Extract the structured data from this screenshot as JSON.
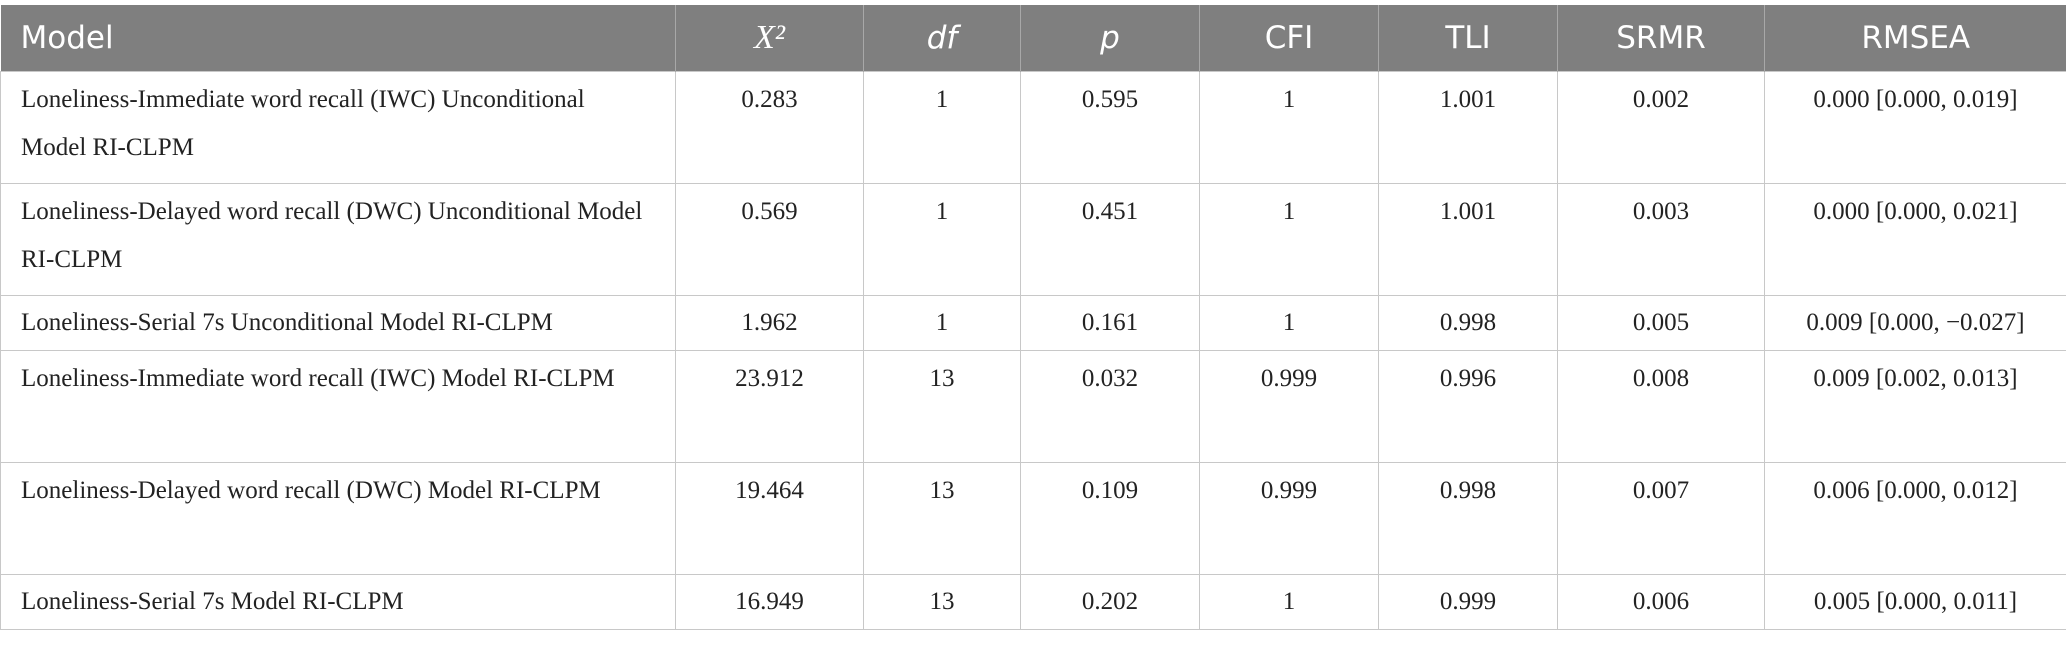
{
  "table": {
    "header": [
      "Model",
      "X²",
      "df",
      "p",
      "CFI",
      "TLI",
      "SRMR",
      "RMSEA"
    ],
    "rows": [
      [
        "Loneliness-Immediate word recall (IWC) Unconditional Model RI-CLPM",
        "0.283",
        "1",
        "0.595",
        "1",
        "1.001",
        "0.002",
        "0.000 [0.000, 0.019]"
      ],
      [
        "Loneliness-Delayed word recall (DWC) Unconditional Model RI-CLPM",
        "0.569",
        "1",
        "0.451",
        "1",
        "1.001",
        "0.003",
        "0.000 [0.000, 0.021]"
      ],
      [
        "Loneliness-Serial 7s Unconditional Model RI-CLPM",
        "1.962",
        "1",
        "0.161",
        "1",
        "0.998",
        "0.005",
        "0.009 [0.000, −0.027]"
      ],
      [
        "Loneliness-Immediate word recall (IWC) Model RI-CLPM",
        "23.912",
        "13",
        "0.032",
        "0.999",
        "0.996",
        "0.008",
        "0.009 [0.002, 0.013]"
      ],
      [
        "Loneliness-Delayed word recall (DWC) Model RI-CLPM",
        "19.464",
        "13",
        "0.109",
        "0.999",
        "0.998",
        "0.007",
        "0.006 [0.000, 0.012]"
      ],
      [
        "Loneliness-Serial 7s Model RI-CLPM",
        "16.949",
        "13",
        "0.202",
        "1",
        "0.999",
        "0.006",
        "0.005 [0.000, 0.011]"
      ]
    ]
  }
}
